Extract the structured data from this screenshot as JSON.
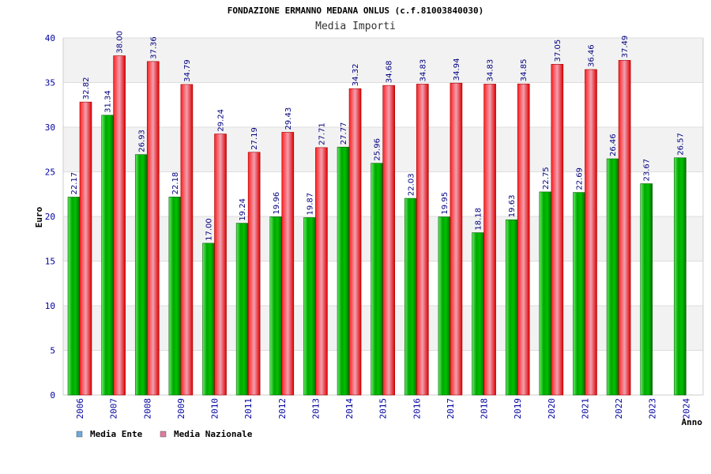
{
  "chart_data": {
    "type": "bar",
    "title": "FONDAZIONE ERMANNO MEDANA ONLUS (c.f.81003840030)",
    "subtitle": "Media Importi",
    "ylabel": "Euro",
    "xlabel": "Anno",
    "ylim": [
      0,
      40
    ],
    "yticks": [
      "0",
      "5",
      "10",
      "15",
      "20",
      "25",
      "30",
      "35",
      "40"
    ],
    "categories": [
      "2006",
      "2007",
      "2008",
      "2009",
      "2010",
      "2011",
      "2012",
      "2013",
      "2014",
      "2015",
      "2016",
      "2017",
      "2018",
      "2019",
      "2020",
      "2021",
      "2022",
      "2023",
      "2024"
    ],
    "series": [
      {
        "name": "Media Ente",
        "color": "#00b000",
        "legend_color": "#6fa8dc",
        "values": [
          22.17,
          31.34,
          26.93,
          22.18,
          17.0,
          19.24,
          19.96,
          19.87,
          27.77,
          25.96,
          22.03,
          19.95,
          18.18,
          19.63,
          22.75,
          22.69,
          26.46,
          23.67,
          26.57
        ],
        "labels": [
          "22.17",
          "31.34",
          "26.93",
          "22.18",
          "17.00",
          "19.24",
          "19.96",
          "19.87",
          "27.77",
          "25.96",
          "22.03",
          "19.95",
          "18.18",
          "19.63",
          "22.75",
          "22.69",
          "26.46",
          "23.67",
          "26.57"
        ]
      },
      {
        "name": "Media Nazionale",
        "color": "#e01010",
        "legend_color": "#e07aa0",
        "values": [
          32.82,
          38.0,
          37.36,
          34.79,
          29.24,
          27.19,
          29.43,
          27.71,
          34.32,
          34.68,
          34.83,
          34.94,
          34.83,
          34.85,
          37.05,
          36.46,
          37.49,
          null,
          null
        ],
        "labels": [
          "32.82",
          "38.00",
          "37.36",
          "34.79",
          "29.24",
          "27.19",
          "29.43",
          "27.71",
          "34.32",
          "34.68",
          "34.83",
          "34.94",
          "34.83",
          "34.85",
          "37.05",
          "36.46",
          "37.49",
          null,
          null
        ]
      }
    ],
    "legend_position": "bottom-left",
    "grid": true
  }
}
